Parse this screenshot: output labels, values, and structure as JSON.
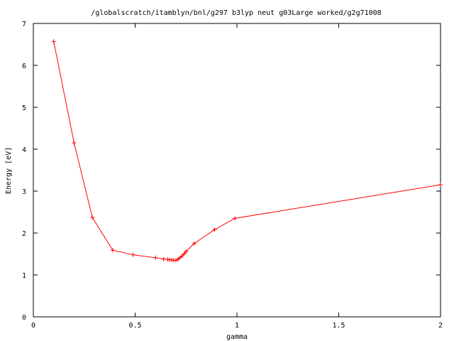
{
  "chart_data": {
    "type": "line",
    "title": "/globalscratch/itamblyn/bnl/g297 b3lyp neut g03Large worked/g2g71008",
    "xlabel": "gamma",
    "ylabel": "Energy [eV]",
    "xlim": [
      0,
      2
    ],
    "ylim": [
      0,
      7
    ],
    "xticks": [
      0,
      0.5,
      1,
      1.5,
      2
    ],
    "xtick_labels": [
      "0",
      "0.5",
      "1",
      "1.5",
      "2"
    ],
    "yticks": [
      0,
      1,
      2,
      3,
      4,
      5,
      6,
      7
    ],
    "ytick_labels": [
      "0",
      "1",
      "2",
      "3",
      "4",
      "5",
      "6",
      "7"
    ],
    "grid": false,
    "legend": "none",
    "series": [
      {
        "name": "",
        "color": "#ff0000",
        "marker": "plus",
        "x": [
          0.1,
          0.2,
          0.29,
          0.39,
          0.49,
          0.6,
          0.64,
          0.66,
          0.67,
          0.68,
          0.69,
          0.7,
          0.71,
          0.72,
          0.73,
          0.74,
          0.75,
          0.79,
          0.89,
          0.99,
          2.0
        ],
        "y": [
          6.57,
          4.15,
          2.37,
          1.59,
          1.48,
          1.41,
          1.38,
          1.37,
          1.36,
          1.36,
          1.35,
          1.35,
          1.37,
          1.41,
          1.45,
          1.5,
          1.56,
          1.75,
          2.08,
          2.35,
          3.15
        ]
      }
    ]
  }
}
